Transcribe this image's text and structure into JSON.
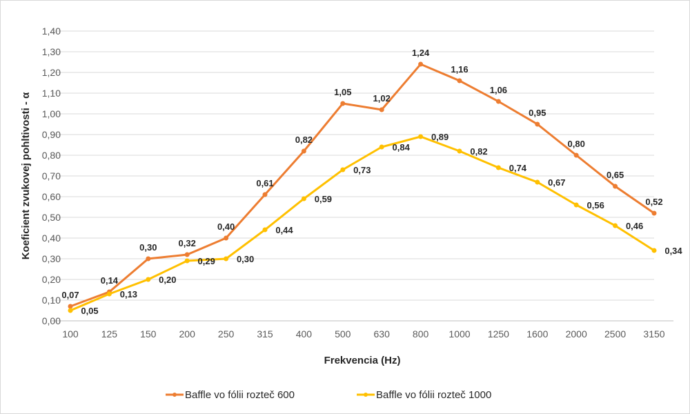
{
  "chart_data": {
    "type": "line",
    "title": "",
    "xlabel": "Frekvencia (Hz)",
    "ylabel": "Koeficient zvukovej pohltivosti - α",
    "categories": [
      "100",
      "125",
      "150",
      "200",
      "250",
      "315",
      "400",
      "500",
      "630",
      "800",
      "1000",
      "1250",
      "1600",
      "2000",
      "2500",
      "3150"
    ],
    "ylim": [
      0,
      1.4
    ],
    "yticks": [
      "0,00",
      "0,10",
      "0,20",
      "0,30",
      "0,40",
      "0,50",
      "0,60",
      "0,70",
      "0,80",
      "0,90",
      "1,00",
      "1,10",
      "1,20",
      "1,30",
      "1,40"
    ],
    "grid": "horizontal",
    "legend": "bottom",
    "series": [
      {
        "name": "Baffle vo fólii rozteč 600",
        "color": "#ED7D31",
        "values": [
          0.07,
          0.14,
          0.3,
          0.32,
          0.4,
          0.61,
          0.82,
          1.05,
          1.02,
          1.24,
          1.16,
          1.06,
          0.95,
          0.8,
          0.65,
          0.52
        ],
        "labels": [
          "0,07",
          "0,14",
          "0,30",
          "0,32",
          "0,40",
          "0,61",
          "0,82",
          "1,05",
          "1,02",
          "1,24",
          "1,16",
          "1,06",
          "0,95",
          "0,80",
          "0,65",
          "0,52"
        ]
      },
      {
        "name": "Baffle vo fólii rozteč 1000",
        "color": "#FFC000",
        "values": [
          0.05,
          0.13,
          0.2,
          0.29,
          0.3,
          0.44,
          0.59,
          0.73,
          0.84,
          0.89,
          0.82,
          0.74,
          0.67,
          0.56,
          0.46,
          0.34
        ],
        "labels": [
          "0,05",
          "0,13",
          "0,20",
          "0,29",
          "0,30",
          "0,44",
          "0,59",
          "0,73",
          "0,84",
          "0,89",
          "0,82",
          "0,74",
          "0,67",
          "0,56",
          "0,46",
          "0,34"
        ]
      }
    ]
  }
}
